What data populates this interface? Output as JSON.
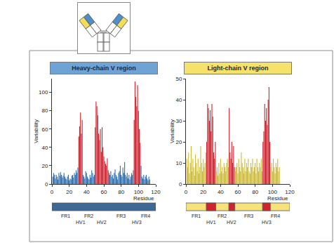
{
  "chart_data": [
    {
      "type": "bar",
      "title": "Heavy-chain V region",
      "xlabel": "Residue",
      "ylabel": "Variability",
      "color": "#3d6994",
      "grid": false,
      "xlim": [
        0,
        120
      ],
      "xticks": [
        0,
        20,
        40,
        60,
        80,
        100,
        120
      ],
      "ylim": [
        0,
        115
      ],
      "yticks": [
        0,
        20,
        40,
        60,
        80,
        100
      ],
      "x": [
        1,
        2,
        3,
        4,
        5,
        6,
        7,
        8,
        9,
        10,
        11,
        12,
        13,
        14,
        15,
        16,
        17,
        18,
        19,
        20,
        21,
        22,
        23,
        24,
        25,
        26,
        27,
        28,
        29,
        30,
        31,
        32,
        33,
        34,
        35,
        36,
        37,
        38,
        39,
        40,
        41,
        42,
        43,
        44,
        45,
        46,
        47,
        48,
        49,
        50,
        51,
        52,
        53,
        54,
        55,
        56,
        57,
        58,
        59,
        60,
        61,
        62,
        63,
        64,
        65,
        66,
        67,
        68,
        69,
        70,
        71,
        72,
        73,
        74,
        75,
        76,
        77,
        78,
        79,
        80,
        81,
        82,
        83,
        84,
        85,
        86,
        87,
        88,
        89,
        90,
        91,
        92,
        93,
        94,
        95,
        96,
        97,
        98,
        99,
        100,
        101,
        102,
        103,
        104,
        105,
        106,
        107,
        108,
        109,
        110,
        111,
        112,
        113
      ],
      "values": [
        8,
        12,
        10,
        6,
        10,
        8,
        5,
        12,
        9,
        13,
        10,
        7,
        9,
        12,
        8,
        6,
        5,
        8,
        10,
        4,
        6,
        5,
        9,
        10,
        7,
        12,
        10,
        15,
        12,
        18,
        52,
        63,
        78,
        55,
        70,
        10,
        8,
        6,
        14,
        12,
        8,
        6,
        5,
        10,
        7,
        15,
        12,
        8,
        10,
        62,
        90,
        85,
        75,
        55,
        48,
        60,
        35,
        62,
        40,
        30,
        25,
        22,
        20,
        28,
        15,
        12,
        10,
        14,
        8,
        10,
        6,
        12,
        16,
        10,
        8,
        5,
        12,
        14,
        20,
        10,
        8,
        18,
        12,
        24,
        10,
        8,
        12,
        6,
        10,
        5,
        8,
        12,
        10,
        15,
        70,
        112,
        95,
        85,
        108,
        80,
        60,
        45,
        20,
        8,
        6,
        10,
        5,
        8,
        10,
        6,
        4,
        8,
        5
      ],
      "regions": [
        {
          "label": "FR1",
          "start": 1,
          "end": 30,
          "color": "#2f6fb0"
        },
        {
          "label": "HV1",
          "start": 31,
          "end": 35,
          "color": "#cf2430"
        },
        {
          "label": "FR2",
          "start": 36,
          "end": 49,
          "color": "#2f6fb0"
        },
        {
          "label": "HV2",
          "start": 50,
          "end": 65,
          "color": "#cf2430"
        },
        {
          "label": "FR3",
          "start": 66,
          "end": 94,
          "color": "#2f6fb0"
        },
        {
          "label": "HV3",
          "start": 95,
          "end": 102,
          "color": "#cf2430"
        },
        {
          "label": "FR4",
          "start": 103,
          "end": 113,
          "color": "#2f6fb0"
        }
      ]
    },
    {
      "type": "bar",
      "title": "Light-chain V region",
      "xlabel": "Residue",
      "ylabel": "Variability",
      "color": "#f5e27a",
      "grid": false,
      "xlim": [
        0,
        120
      ],
      "xticks": [
        0,
        20,
        40,
        60,
        80,
        100,
        120
      ],
      "ylim": [
        0,
        50
      ],
      "yticks": [
        0,
        10,
        20,
        30,
        40,
        50
      ],
      "x": [
        1,
        2,
        3,
        4,
        5,
        6,
        7,
        8,
        9,
        10,
        11,
        12,
        13,
        14,
        15,
        16,
        17,
        18,
        19,
        20,
        21,
        22,
        23,
        24,
        25,
        26,
        27,
        28,
        29,
        30,
        31,
        32,
        33,
        34,
        35,
        36,
        37,
        38,
        39,
        40,
        41,
        42,
        43,
        44,
        45,
        46,
        47,
        48,
        49,
        50,
        51,
        52,
        53,
        54,
        55,
        56,
        57,
        58,
        59,
        60,
        61,
        62,
        63,
        64,
        65,
        66,
        67,
        68,
        69,
        70,
        71,
        72,
        73,
        74,
        75,
        76,
        77,
        78,
        79,
        80,
        81,
        82,
        83,
        84,
        85,
        86,
        87,
        88,
        89,
        90,
        91,
        92,
        93,
        94,
        95,
        96,
        97,
        98,
        99,
        100,
        101,
        102,
        103,
        104,
        105,
        106,
        107,
        108
      ],
      "values": [
        12,
        8,
        15,
        5,
        10,
        18,
        6,
        12,
        8,
        4,
        14,
        10,
        6,
        12,
        5,
        8,
        18,
        10,
        6,
        12,
        8,
        10,
        15,
        20,
        38,
        36,
        30,
        35,
        25,
        38,
        32,
        15,
        12,
        20,
        6,
        8,
        4,
        10,
        5,
        12,
        6,
        8,
        5,
        10,
        8,
        6,
        10,
        12,
        8,
        36,
        15,
        12,
        20,
        10,
        18,
        8,
        6,
        8,
        10,
        5,
        12,
        8,
        6,
        15,
        10,
        8,
        5,
        12,
        6,
        10,
        8,
        12,
        6,
        5,
        10,
        8,
        12,
        6,
        8,
        10,
        5,
        12,
        8,
        6,
        10,
        8,
        12,
        6,
        20,
        25,
        38,
        30,
        36,
        28,
        40,
        46,
        20,
        8,
        10,
        6,
        12,
        8,
        5,
        10,
        8,
        12,
        6,
        8
      ],
      "regions": [
        {
          "label": "FR1",
          "start": 1,
          "end": 23,
          "color": "#cdbb3a"
        },
        {
          "label": "HV1",
          "start": 24,
          "end": 34,
          "color": "#cf2430"
        },
        {
          "label": "FR2",
          "start": 35,
          "end": 49,
          "color": "#cdbb3a"
        },
        {
          "label": "HV2",
          "start": 50,
          "end": 56,
          "color": "#cf2430"
        },
        {
          "label": "FR3",
          "start": 57,
          "end": 88,
          "color": "#cdbb3a"
        },
        {
          "label": "HV3",
          "start": 89,
          "end": 97,
          "color": "#cf2430"
        },
        {
          "label": "FR4",
          "start": 98,
          "end": 108,
          "color": "#cdbb3a"
        }
      ]
    }
  ]
}
